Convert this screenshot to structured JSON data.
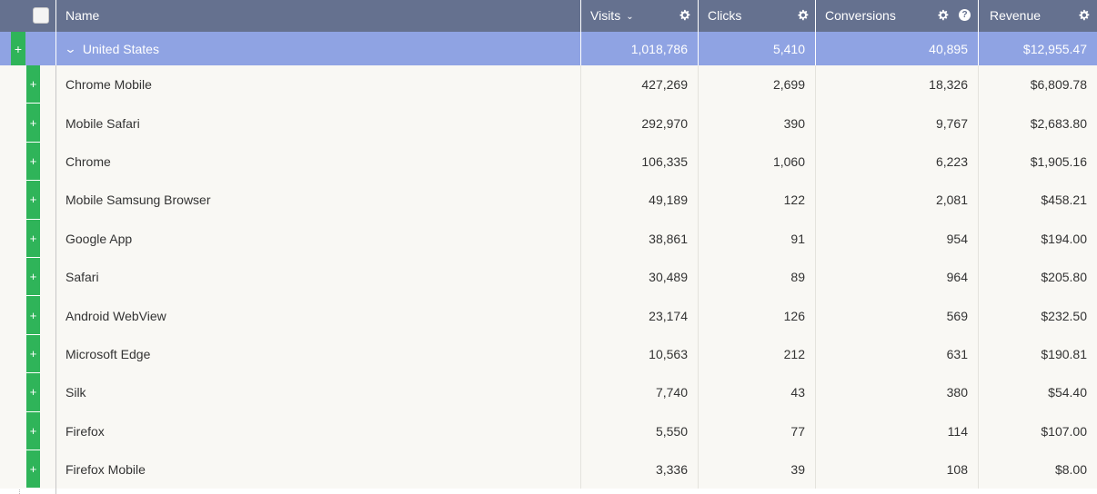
{
  "header": {
    "name_label": "Name",
    "visits_label": "Visits",
    "clicks_label": "Clicks",
    "conversions_label": "Conversions",
    "revenue_label": "Revenue",
    "sort_icon": "chevron-down-icon",
    "settings_icon": "gear-icon",
    "help_icon": "question-circle-icon",
    "help_glyph": "?"
  },
  "group": {
    "expander": "+",
    "name": "United States",
    "visits": "1,018,786",
    "clicks": "5,410",
    "conversions": "40,895",
    "revenue": "$12,955.47"
  },
  "rows": [
    {
      "expander": "+",
      "name": "Chrome Mobile",
      "visits": "427,269",
      "clicks": "2,699",
      "conversions": "18,326",
      "revenue": "$6,809.78"
    },
    {
      "expander": "+",
      "name": "Mobile Safari",
      "visits": "292,970",
      "clicks": "390",
      "conversions": "9,767",
      "revenue": "$2,683.80"
    },
    {
      "expander": "+",
      "name": "Chrome",
      "visits": "106,335",
      "clicks": "1,060",
      "conversions": "6,223",
      "revenue": "$1,905.16"
    },
    {
      "expander": "+",
      "name": "Mobile Samsung Browser",
      "visits": "49,189",
      "clicks": "122",
      "conversions": "2,081",
      "revenue": "$458.21"
    },
    {
      "expander": "+",
      "name": "Google App",
      "visits": "38,861",
      "clicks": "91",
      "conversions": "954",
      "revenue": "$194.00"
    },
    {
      "expander": "+",
      "name": "Safari",
      "visits": "30,489",
      "clicks": "89",
      "conversions": "964",
      "revenue": "$205.80"
    },
    {
      "expander": "+",
      "name": "Android WebView",
      "visits": "23,174",
      "clicks": "126",
      "conversions": "569",
      "revenue": "$232.50"
    },
    {
      "expander": "+",
      "name": "Microsoft Edge",
      "visits": "10,563",
      "clicks": "212",
      "conversions": "631",
      "revenue": "$190.81"
    },
    {
      "expander": "+",
      "name": "Silk",
      "visits": "7,740",
      "clicks": "43",
      "conversions": "380",
      "revenue": "$54.40"
    },
    {
      "expander": "+",
      "name": "Firefox",
      "visits": "5,550",
      "clicks": "77",
      "conversions": "114",
      "revenue": "$107.00"
    },
    {
      "expander": "+",
      "name": "Firefox Mobile",
      "visits": "3,336",
      "clicks": "39",
      "conversions": "108",
      "revenue": "$8.00"
    }
  ],
  "colors": {
    "header_bg": "#65718f",
    "group_bg": "#8fa3e3",
    "expander_green": "#2fb459",
    "row_bg": "#f9f8f4"
  }
}
